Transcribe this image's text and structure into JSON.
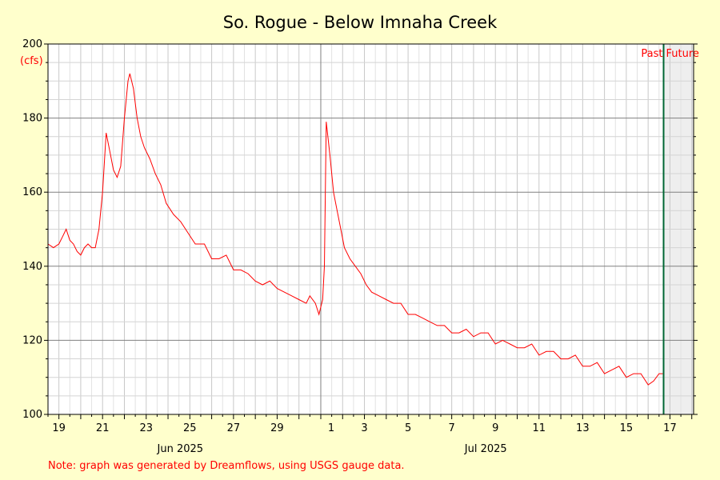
{
  "chart_data": {
    "type": "line",
    "title": "So. Rogue - Below Imnaha Creek",
    "ylabel": "(cfs)",
    "ylim": [
      100,
      200
    ],
    "yticks": [
      100,
      120,
      140,
      160,
      180,
      200
    ],
    "xlim": [
      "2025-06-18T12:00",
      "2025-07-18T02:00"
    ],
    "x_day_labels": [
      {
        "label": "19",
        "date": "2025-06-19"
      },
      {
        "label": "21",
        "date": "2025-06-21"
      },
      {
        "label": "23",
        "date": "2025-06-23"
      },
      {
        "label": "25",
        "date": "2025-06-25"
      },
      {
        "label": "27",
        "date": "2025-06-27"
      },
      {
        "label": "29",
        "date": "2025-06-29"
      },
      {
        "label": "1",
        "date": "2025-07-01"
      },
      {
        "label": "3",
        "date": "2025-07-03"
      },
      {
        "label": "5",
        "date": "2025-07-05"
      },
      {
        "label": "7",
        "date": "2025-07-07"
      },
      {
        "label": "9",
        "date": "2025-07-09"
      },
      {
        "label": "11",
        "date": "2025-07-11"
      },
      {
        "label": "13",
        "date": "2025-07-13"
      },
      {
        "label": "15",
        "date": "2025-07-15"
      },
      {
        "label": "17",
        "date": "2025-07-17"
      }
    ],
    "x_month_labels": [
      {
        "label": "Jun 2025",
        "date": "2025-06-25"
      },
      {
        "label": "Jul 2025",
        "date": "2025-07-09"
      }
    ],
    "month_divider": "2025-07-01",
    "now": "2025-07-16T17:00",
    "past_label": "Past",
    "future_label": "Future",
    "grid": true,
    "series": [
      {
        "color": "#ff0000",
        "points": [
          [
            "2025-06-18T12:00",
            146
          ],
          [
            "2025-06-18T18:00",
            145
          ],
          [
            "2025-06-19T00:00",
            146
          ],
          [
            "2025-06-19T04:00",
            148
          ],
          [
            "2025-06-19T08:00",
            150
          ],
          [
            "2025-06-19T12:00",
            147
          ],
          [
            "2025-06-19T16:00",
            146
          ],
          [
            "2025-06-19T20:00",
            144
          ],
          [
            "2025-06-20T00:00",
            143
          ],
          [
            "2025-06-20T04:00",
            145
          ],
          [
            "2025-06-20T08:00",
            146
          ],
          [
            "2025-06-20T12:00",
            145
          ],
          [
            "2025-06-20T16:00",
            145
          ],
          [
            "2025-06-20T20:00",
            150
          ],
          [
            "2025-06-21T00:00",
            160
          ],
          [
            "2025-06-21T04:00",
            176
          ],
          [
            "2025-06-21T08:00",
            171
          ],
          [
            "2025-06-21T12:00",
            166
          ],
          [
            "2025-06-21T16:00",
            164
          ],
          [
            "2025-06-21T20:00",
            167
          ],
          [
            "2025-06-22T00:00",
            180
          ],
          [
            "2025-06-22T04:00",
            190
          ],
          [
            "2025-06-22T06:00",
            192
          ],
          [
            "2025-06-22T10:00",
            188
          ],
          [
            "2025-06-22T14:00",
            180
          ],
          [
            "2025-06-22T18:00",
            175
          ],
          [
            "2025-06-22T22:00",
            172
          ],
          [
            "2025-06-23T04:00",
            169
          ],
          [
            "2025-06-23T10:00",
            165
          ],
          [
            "2025-06-23T16:00",
            162
          ],
          [
            "2025-06-23T22:00",
            157
          ],
          [
            "2025-06-24T06:00",
            154
          ],
          [
            "2025-06-24T14:00",
            152
          ],
          [
            "2025-06-24T22:00",
            149
          ],
          [
            "2025-06-25T06:00",
            146
          ],
          [
            "2025-06-25T16:00",
            146
          ],
          [
            "2025-06-26T00:00",
            142
          ],
          [
            "2025-06-26T08:00",
            142
          ],
          [
            "2025-06-26T16:00",
            143
          ],
          [
            "2025-06-27T00:00",
            139
          ],
          [
            "2025-06-27T08:00",
            139
          ],
          [
            "2025-06-27T16:00",
            138
          ],
          [
            "2025-06-28T00:00",
            136
          ],
          [
            "2025-06-28T08:00",
            135
          ],
          [
            "2025-06-28T16:00",
            136
          ],
          [
            "2025-06-29T00:00",
            134
          ],
          [
            "2025-06-29T08:00",
            133
          ],
          [
            "2025-06-29T16:00",
            132
          ],
          [
            "2025-06-30T00:00",
            131
          ],
          [
            "2025-06-30T08:00",
            130
          ],
          [
            "2025-06-30T12:00",
            132
          ],
          [
            "2025-06-30T18:00",
            130
          ],
          [
            "2025-06-30T22:00",
            127
          ],
          [
            "2025-07-01T02:00",
            131
          ],
          [
            "2025-07-01T04:00",
            140
          ],
          [
            "2025-07-01T06:00",
            179
          ],
          [
            "2025-07-01T10:00",
            170
          ],
          [
            "2025-07-01T14:00",
            160
          ],
          [
            "2025-07-01T18:00",
            155
          ],
          [
            "2025-07-01T22:00",
            150
          ],
          [
            "2025-07-02T02:00",
            145
          ],
          [
            "2025-07-02T08:00",
            142
          ],
          [
            "2025-07-02T14:00",
            140
          ],
          [
            "2025-07-02T20:00",
            138
          ],
          [
            "2025-07-03T02:00",
            135
          ],
          [
            "2025-07-03T08:00",
            133
          ],
          [
            "2025-07-03T16:00",
            132
          ],
          [
            "2025-07-04T00:00",
            131
          ],
          [
            "2025-07-04T08:00",
            130
          ],
          [
            "2025-07-04T16:00",
            130
          ],
          [
            "2025-07-05T00:00",
            127
          ],
          [
            "2025-07-05T08:00",
            127
          ],
          [
            "2025-07-05T16:00",
            126
          ],
          [
            "2025-07-06T00:00",
            125
          ],
          [
            "2025-07-06T08:00",
            124
          ],
          [
            "2025-07-06T16:00",
            124
          ],
          [
            "2025-07-07T00:00",
            122
          ],
          [
            "2025-07-07T08:00",
            122
          ],
          [
            "2025-07-07T16:00",
            123
          ],
          [
            "2025-07-08T00:00",
            121
          ],
          [
            "2025-07-08T08:00",
            122
          ],
          [
            "2025-07-08T16:00",
            122
          ],
          [
            "2025-07-09T00:00",
            119
          ],
          [
            "2025-07-09T08:00",
            120
          ],
          [
            "2025-07-09T16:00",
            119
          ],
          [
            "2025-07-10T00:00",
            118
          ],
          [
            "2025-07-10T08:00",
            118
          ],
          [
            "2025-07-10T16:00",
            119
          ],
          [
            "2025-07-11T00:00",
            116
          ],
          [
            "2025-07-11T08:00",
            117
          ],
          [
            "2025-07-11T16:00",
            117
          ],
          [
            "2025-07-12T00:00",
            115
          ],
          [
            "2025-07-12T08:00",
            115
          ],
          [
            "2025-07-12T16:00",
            116
          ],
          [
            "2025-07-13T00:00",
            113
          ],
          [
            "2025-07-13T08:00",
            113
          ],
          [
            "2025-07-13T16:00",
            114
          ],
          [
            "2025-07-14T00:00",
            111
          ],
          [
            "2025-07-14T08:00",
            112
          ],
          [
            "2025-07-14T16:00",
            113
          ],
          [
            "2025-07-15T00:00",
            110
          ],
          [
            "2025-07-15T08:00",
            111
          ],
          [
            "2025-07-15T16:00",
            111
          ],
          [
            "2025-07-16T00:00",
            108
          ],
          [
            "2025-07-16T06:00",
            109
          ],
          [
            "2025-07-16T12:00",
            111
          ],
          [
            "2025-07-16T16:00",
            111
          ]
        ]
      }
    ]
  },
  "footer": {
    "note": "Note: graph was generated by Dreamflows, using USGS gauge data."
  },
  "colors": {
    "background": "#ffffcc",
    "plot": "#ffffff",
    "future_shade": "#eeeeee",
    "line": "#ff0000",
    "now_line": "#006633",
    "text_accent": "#ff0000"
  }
}
